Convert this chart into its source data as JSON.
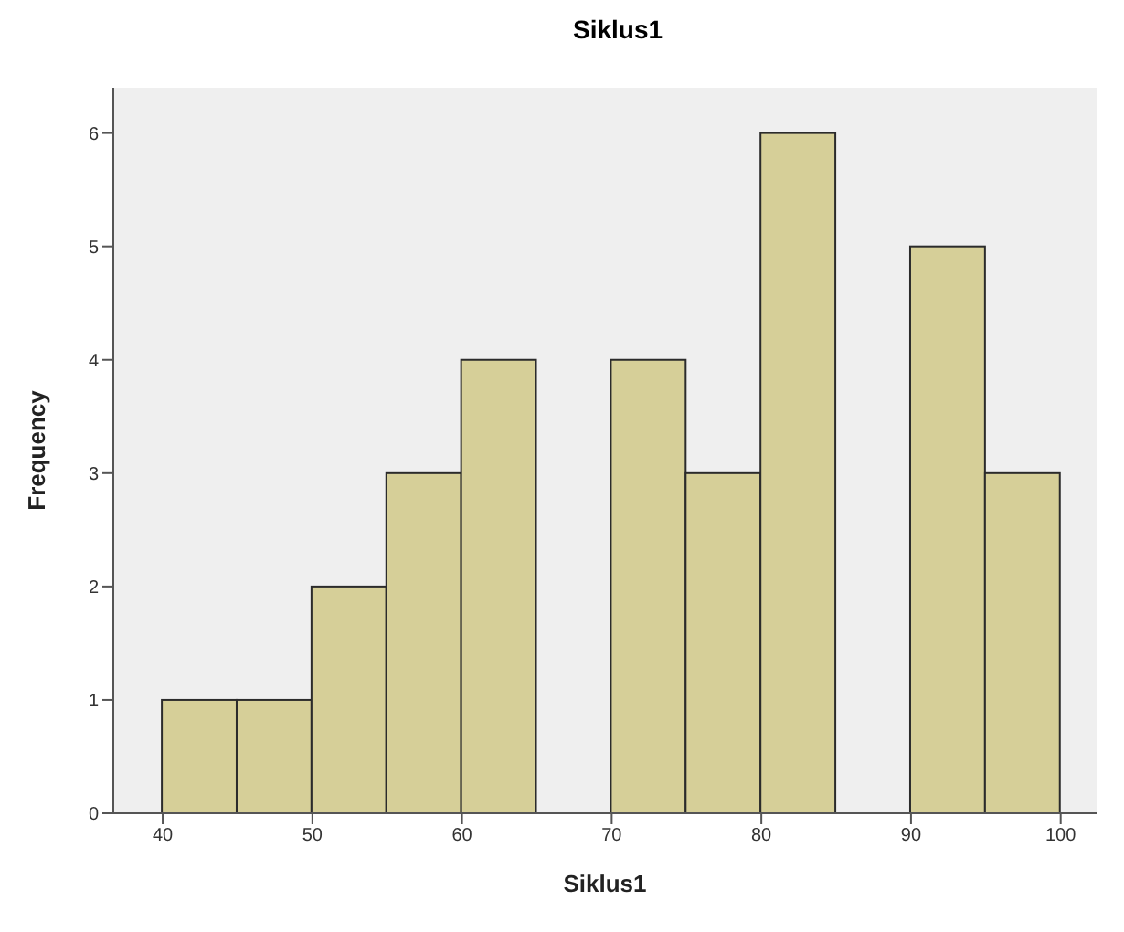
{
  "chart_data": {
    "type": "histogram",
    "title": "Siklus1",
    "xlabel": "Siklus1",
    "ylabel": "Frequency",
    "bins": [
      40,
      45,
      50,
      55,
      60,
      65,
      70,
      75,
      80,
      85,
      90,
      95,
      100
    ],
    "values": [
      1,
      1,
      2,
      3,
      4,
      0,
      4,
      3,
      6,
      0,
      5,
      3
    ],
    "color": "#d6cf98",
    "xlim": [
      36.7,
      102.4
    ],
    "xticks": [
      40,
      50,
      60,
      70,
      80,
      90,
      100
    ],
    "ylim": [
      0,
      6.4
    ],
    "yticks": [
      0,
      1,
      2,
      3,
      4,
      5,
      6
    ],
    "grid": false
  }
}
